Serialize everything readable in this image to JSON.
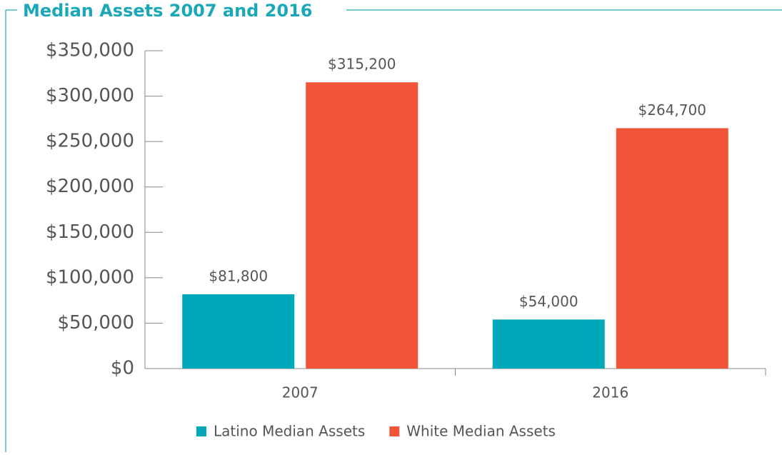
{
  "chart_data": {
    "type": "bar",
    "title": "Median Assets 2007 and 2016",
    "categories": [
      "2007",
      "2016"
    ],
    "series": [
      {
        "name": "Latino Median Assets",
        "color": "#00a9b9",
        "values": [
          81800,
          54000
        ],
        "value_labels": [
          "$81,800",
          "$54,000"
        ]
      },
      {
        "name": "White Median Assets",
        "color": "#f05537",
        "values": [
          315200,
          264700
        ],
        "value_labels": [
          "$315,200",
          "$264,700"
        ]
      }
    ],
    "ylim": [
      0,
      350000
    ],
    "yticks": [
      {
        "value": 0,
        "label": "$0"
      },
      {
        "value": 50000,
        "label": "$50,000"
      },
      {
        "value": 100000,
        "label": "$100,000"
      },
      {
        "value": 150000,
        "label": "$150,000"
      },
      {
        "value": 200000,
        "label": "$200,000"
      },
      {
        "value": 250000,
        "label": "$250,000"
      },
      {
        "value": 300000,
        "label": "$300,000"
      },
      {
        "value": 350000,
        "label": "$350,000"
      }
    ],
    "grid": false,
    "legend": "bottom"
  }
}
